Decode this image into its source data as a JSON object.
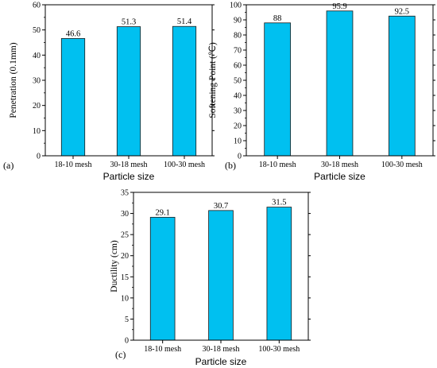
{
  "chart_data": [
    {
      "type": "bar",
      "panel_label": "(a)",
      "categories": [
        "18-10 mesh",
        "30-18 mesh",
        "100-30 mesh"
      ],
      "values": [
        46.6,
        51.3,
        51.4
      ],
      "value_labels": [
        "46.6",
        "51.3",
        "51.4"
      ],
      "xlabel": "Particle size",
      "ylabel": "Penetration (0.1mm)",
      "ylim": [
        0,
        60
      ],
      "yticks": [
        0,
        10,
        20,
        30,
        40,
        50,
        60
      ],
      "bar_color": "#00c0f0",
      "grid": false
    },
    {
      "type": "bar",
      "panel_label": "(b)",
      "categories": [
        "18-10 mesh",
        "30-18 mesh",
        "100-30 mesh"
      ],
      "values": [
        88,
        95.9,
        92.5
      ],
      "value_labels": [
        "88",
        "95.9",
        "92.5"
      ],
      "xlabel": "Particle size",
      "ylabel": "Softening Point (℃)",
      "ylim": [
        0,
        100
      ],
      "yticks": [
        0,
        10,
        20,
        30,
        40,
        50,
        60,
        70,
        80,
        90,
        100
      ],
      "bar_color": "#00c0f0",
      "grid": false
    },
    {
      "type": "bar",
      "panel_label": "(c)",
      "categories": [
        "18-10 mesh",
        "30-18 mesh",
        "100-30 mesh"
      ],
      "values": [
        29.1,
        30.7,
        31.5
      ],
      "value_labels": [
        "29.1",
        "30.7",
        "31.5"
      ],
      "xlabel": "Particle size",
      "ylabel": "Ductility (cm)",
      "ylim": [
        0,
        35
      ],
      "yticks": [
        0,
        5,
        10,
        15,
        20,
        25,
        30,
        35
      ],
      "bar_color": "#00c0f0",
      "grid": false
    }
  ]
}
